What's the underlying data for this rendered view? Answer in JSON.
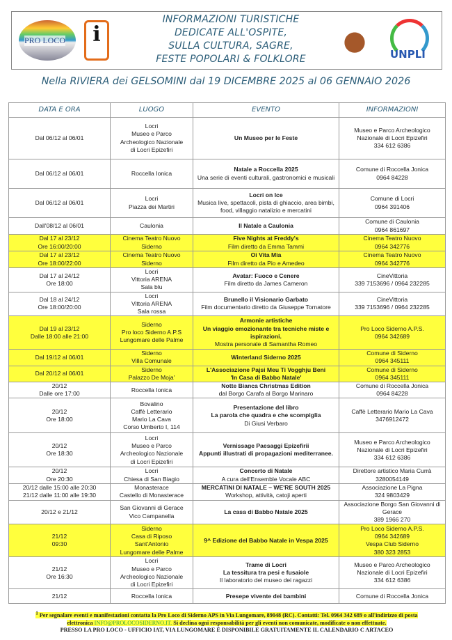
{
  "header": {
    "title_lines": [
      "INFORMAZIONI TURISTICHE",
      "DEDICATE ALL'OSPITE,",
      "SULLA CULTURA, SAGRE,",
      "FESTE POPOLARI & FOLKLORE"
    ],
    "logos": {
      "proloco": "PRO LOCO",
      "iat": "i",
      "unpli": "UNPLI"
    },
    "subtitle": "Nella RIVIERA dei GELSOMINI dal 19 DICEMBRE 2025 al 06 GENNAIO 2026"
  },
  "colors": {
    "highlight": "#ffff3d",
    "heading": "#2b5d78"
  },
  "table": {
    "columns": [
      "DATA E ORA",
      "LUOGO",
      "EVENTO",
      "INFORMAZIONI"
    ],
    "rows": [
      {
        "h": 63,
        "y": false,
        "date": [
          "Dal 06/12 al 06/01"
        ],
        "place": [
          "Locri",
          "Museo e Parco",
          "Archeologico Nazionale",
          "di Locri Epizefiri"
        ],
        "event": [
          {
            "t": "Un Museo per le Feste",
            "b": true
          }
        ],
        "info": [
          "Museo e Parco Archeologico",
          "Nazionale di Locri Epizefiri",
          "334 612 6386"
        ]
      },
      {
        "h": 44,
        "y": false,
        "date": [
          "Dal 06/12 al 06/01"
        ],
        "place": [
          "Roccella Ionica"
        ],
        "event": [
          {
            "t": "Natale a Roccella 2025",
            "b": true
          },
          {
            "t": "Una serie di eventi culturali, gastronomici e musicali",
            "b": false
          }
        ],
        "info": [
          "Comune di Roccella Jonica",
          "0964 84228"
        ]
      },
      {
        "h": 44,
        "y": false,
        "date": [
          "Dal 06/12 al 06/01"
        ],
        "place": [
          "Locri",
          "Piazza dei Martiri"
        ],
        "event": [
          {
            "t": "Locri on Ice",
            "b": true
          },
          {
            "t": "Musica live, spettacoli, pista di ghiaccio, area bimbi, food, villaggio natalizio e mercatini",
            "b": false
          }
        ],
        "info": [
          "Comune di Locri",
          "0964 391406"
        ]
      },
      {
        "h": 25,
        "y": false,
        "date": [
          "Dall'08/12 al 06/01"
        ],
        "place": [
          "Caulonia"
        ],
        "event": [
          {
            "t": "Il Natale a Caulonia",
            "b": true
          }
        ],
        "info": [
          "Comune di Caulonia",
          "0964 861697"
        ]
      },
      {
        "h": 25,
        "y": true,
        "date": [
          "Dal 17 al 23/12",
          "Ore 16:00/20:00"
        ],
        "place": [
          "Cinema Teatro Nuovo",
          "Siderno"
        ],
        "event": [
          {
            "t": "Five Nights at Freddy's",
            "b": true
          },
          {
            "t": "Film diretto da Emma Tammi",
            "b": false
          }
        ],
        "info": [
          "Cinema Teatro Nuovo",
          "0964 342776"
        ]
      },
      {
        "h": 25,
        "y": true,
        "date": [
          "Dal 17 al 23/12",
          "Ore 18:00/22:00"
        ],
        "place": [
          "Cinema Teatro Nuovo",
          "Siderno"
        ],
        "event": [
          {
            "t": "Oi Vita Mia",
            "b": true
          },
          {
            "t": "Film diretto da Pio e Amedeo",
            "b": false
          }
        ],
        "info": [
          "Cinema Teatro Nuovo",
          "0964 342776"
        ]
      },
      {
        "h": 36,
        "y": false,
        "date": [
          "Dal 17 al 24/12",
          "Ore 18:00"
        ],
        "place": [
          "Locri",
          "Vittoria ARENA",
          "Sala blu"
        ],
        "event": [
          {
            "t": "Avatar: Fuoco e Cenere",
            "b": true
          },
          {
            "t": "Film diretto da James Cameron",
            "b": false
          }
        ],
        "info": [
          "CineVittoria",
          "339 7153696 / 0964 232285"
        ]
      },
      {
        "h": 36,
        "y": false,
        "date": [
          "Dal 18 al 24/12",
          "Ore 18:00/20:00"
        ],
        "place": [
          "Locri",
          "Vittoria ARENA",
          "Sala rossa"
        ],
        "event": [
          {
            "t": "Brunello il Visionario Garbato",
            "b": true
          },
          {
            "t": "Film documentario diretto da Giuseppe Tornatore",
            "b": false
          }
        ],
        "info": [
          "CineVittoria",
          "339 7153696 / 0964 232285"
        ]
      },
      {
        "h": 51,
        "y": true,
        "date": [
          "Dal 19 al 23/12",
          "Dalle 18:00 alle 21:00"
        ],
        "place": [
          "Siderno",
          "Pro loco Siderno A.P.S",
          "Lungomare delle Palme"
        ],
        "event": [
          {
            "t": "Armonie artistiche",
            "b": true
          },
          {
            "t": "Un viaggio emozionante tra tecniche miste e ispirazioni.",
            "b": true
          },
          {
            "t": "Mostra personale di Samantha Romeo",
            "b": false
          }
        ],
        "info": [
          "Pro Loco Siderno A.P.S.",
          "0964 342689"
        ]
      },
      {
        "h": 24,
        "y": true,
        "date": [
          "Dal 19/12 al 06/01"
        ],
        "place": [
          "Siderno",
          "Villa Comunale"
        ],
        "event": [
          {
            "t": "Winterland Siderno 2025",
            "b": true
          }
        ],
        "info": [
          "Comune di Siderno",
          "0964 345111"
        ]
      },
      {
        "h": 23,
        "y": true,
        "date": [
          "Dal 20/12 al 06/01"
        ],
        "place": [
          "Siderno",
          "Palazzo De Moja'"
        ],
        "event": [
          {
            "t": "L'Associazione Pajsi Meu Ti Vogghju Beni",
            "b": true
          },
          {
            "t": "'In Casa di Babbo Natale'",
            "b": true
          }
        ],
        "info": [
          "Comune di Siderno",
          "0964 345111"
        ]
      },
      {
        "h": 24,
        "y": false,
        "date": [
          "20/12",
          "Dalle ore 17:00"
        ],
        "place": [
          "Roccella Ionica"
        ],
        "event": [
          {
            "t": "Notte Bianca Christmas Edition",
            "b": true
          },
          {
            "t": "dal Borgo Carafa al Borgo Marinaro",
            "b": false
          }
        ],
        "info": [
          "Comune di Roccella Jonica",
          "0964 84228"
        ]
      },
      {
        "h": 53,
        "y": false,
        "date": [
          "20/12",
          "Ore 18:00"
        ],
        "place": [
          "Bovalino",
          "Caffè Letterario",
          "Mario La Cava",
          "Corso Umberto I, 114"
        ],
        "event": [
          {
            "t": "Presentazione del libro",
            "b": true
          },
          {
            "t": "La parola che quadra e che scompiglia",
            "b": true
          },
          {
            "t": "Di Giusi Verbaro",
            "b": false
          }
        ],
        "info": [
          "Caffè Letterario Mario La Cava",
          "3476912472"
        ]
      },
      {
        "h": 52,
        "y": false,
        "date": [
          "20/12",
          "Ore 18:30"
        ],
        "place": [
          "Locri",
          "Museo e Parco",
          "Archeologico Nazionale",
          "di Locri Epizefiri"
        ],
        "event": [
          {
            "t": "Vernissage Paesaggi Epizefirii",
            "b": true
          },
          {
            "t": "Appunti illustrati di propagazioni mediterranee.",
            "b": true
          }
        ],
        "info": [
          "Museo e Parco Archeologico",
          "Nazionale di Locri Epizefiri",
          "334 612 6386"
        ]
      },
      {
        "h": 21,
        "y": false,
        "date": [
          "20/12",
          "Ore 20:30"
        ],
        "place": [
          "Locri",
          "Chiesa di San Biagio"
        ],
        "event": [
          {
            "t": "Concerto di Natale",
            "b": true
          },
          {
            "t": "A cura dell'Ensemble Vocale ABC",
            "b": false
          }
        ],
        "info": [
          "Direttore artistico Maria Currà",
          "3280054149"
        ]
      },
      {
        "h": 25,
        "y": false,
        "date": [
          "20/12 dalle 15:00 alle 20:30",
          "21/12 dalle 11:00 alle 19:30"
        ],
        "place": [
          "Monasterace",
          "Castello di Monasterace"
        ],
        "event": [
          {
            "t": "MERCATINI DI NATALE – WE'RE SOUTH 2025",
            "b": true
          },
          {
            "t": "Workshop, attività, catoji aperti",
            "b": false
          }
        ],
        "info": [
          "Associazione La Pigna",
          "324 9803429"
        ]
      },
      {
        "h": 34,
        "y": false,
        "date": [
          "20/12 e 21/12"
        ],
        "place": [
          "San Giovanni di Gerace",
          "Vico Campanella"
        ],
        "event": [
          {
            "t": "La casa di Babbo Natale 2025",
            "b": true
          }
        ],
        "info": [
          "Associazione Borgo San Giovanni di Gerace",
          "389 1966 270"
        ]
      },
      {
        "h": 49,
        "y": true,
        "date": [
          "21/12",
          "09:30"
        ],
        "place": [
          "Siderno",
          "Casa di Riposo",
          "Sant'Antonio",
          "Lungomare delle Palme"
        ],
        "event": [
          {
            "t": "9^ Edizione del Babbo Natale in Vespa 2025",
            "b": true
          }
        ],
        "info": [
          "Pro Loco Siderno A.P.S.",
          "0964 342689",
          "Vespa Club Siderno",
          "380 323 2853"
        ]
      },
      {
        "h": 47,
        "y": false,
        "date": [
          "21/12",
          "Ore 16:30"
        ],
        "place": [
          "Locri",
          "Museo e Parco",
          "Archeologico Nazionale",
          "di Locri Epizefiri"
        ],
        "event": [
          {
            "t": "Trame di Locri",
            "b": true
          },
          {
            "t": "La tessitura tra pesi e fusaiole",
            "b": true
          },
          {
            "t": "Il laboratorio del museo dei ragazzi",
            "b": false
          }
        ],
        "info": [
          "Museo e Parco Archeologico",
          "Nazionale di Locri Epizefiri",
          "334 612 6386"
        ]
      },
      {
        "h": 22,
        "y": false,
        "date": [
          "21/12"
        ],
        "place": [
          "Roccella Ionica"
        ],
        "event": [
          {
            "t": "Presepe vivente dei bambini",
            "b": true
          }
        ],
        "info": [
          "Comune di Roccella Jonica"
        ]
      }
    ]
  },
  "footer": {
    "sup": "1",
    "line1": "Per segnalare eventi e manifestazioni contatta la Pro Loco di Siderno APS in Via Lungomare, 89048 (RC). Contatti: Tel. 0964 342 689 o all'indirizzo di posta elettronica",
    "email": "INFO@PROLOCOSIDERNO.IT.",
    "line2": "Si declina ogni responsabilità per gli eventi non comunicate, modificate o non effettuate.",
    "line3": "PRESSO LA PRO LOCO - UFFICIO IAT, VIA LUNGOMARE È DISPONIBILE GRATUITAMENTE IL CALENDARIO C ARTACEO"
  }
}
